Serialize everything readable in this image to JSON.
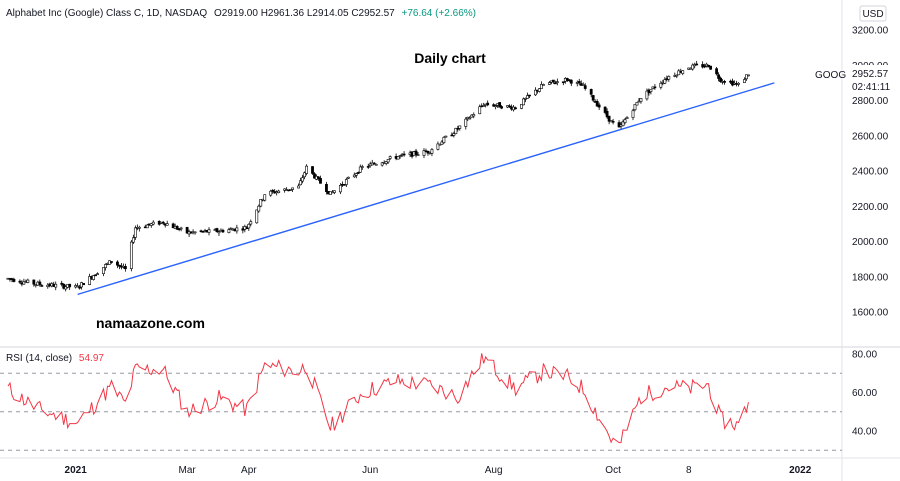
{
  "header": {
    "symbol_line": "Alphabet Inc (Google) Class C, 1D, NASDAQ",
    "ohlc": "O2919.00 H2961.36 L2914.05 C2952.57",
    "change": "+76.64 (+2.66%)"
  },
  "currency_badge": "USD",
  "annotations": {
    "title": "Daily chart",
    "watermark": "namaazone.com",
    "ticker": "GOOG",
    "last_price": "2952.57",
    "countdown": "02:41:11"
  },
  "rsi_header": {
    "label": "RSI (14, close)",
    "value": "54.97"
  },
  "colors": {
    "candle": "#000000",
    "trendline": "#2962ff",
    "rsi_line": "#f23645",
    "rsi_bands": "#9598a1",
    "grid": "#e0e3eb"
  },
  "chart_data": [
    {
      "type": "candlestick",
      "x_tick_labels": [
        "2021",
        "Mar",
        "Apr",
        "Jun",
        "Aug",
        "Oct",
        "8",
        "2022"
      ],
      "y_tick_labels": [
        "1600.00",
        "1800.00",
        "2000.00",
        "2200.00",
        "2400.00",
        "2600.00",
        "2800.00",
        "3000.00",
        "3200.00"
      ],
      "ylim": [
        1500,
        3250
      ],
      "close_series": [
        [
          "2020-12-01",
          1790
        ],
        [
          "2020-12-15",
          1760
        ],
        [
          "2021-01-05",
          1740
        ],
        [
          "2021-01-22",
          1890
        ],
        [
          "2021-01-29",
          1840
        ],
        [
          "2021-02-03",
          2080
        ],
        [
          "2021-02-17",
          2110
        ],
        [
          "2021-03-01",
          2050
        ],
        [
          "2021-03-17",
          2060
        ],
        [
          "2021-03-31",
          2080
        ],
        [
          "2021-04-09",
          2270
        ],
        [
          "2021-04-26",
          2310
        ],
        [
          "2021-04-30",
          2420
        ],
        [
          "2021-05-12",
          2270
        ],
        [
          "2021-05-28",
          2420
        ],
        [
          "2021-06-14",
          2480
        ],
        [
          "2021-06-30",
          2510
        ],
        [
          "2021-07-15",
          2640
        ],
        [
          "2021-07-28",
          2780
        ],
        [
          "2021-08-13",
          2760
        ],
        [
          "2021-08-27",
          2890
        ],
        [
          "2021-09-08",
          2920
        ],
        [
          "2021-09-16",
          2880
        ],
        [
          "2021-09-30",
          2680
        ],
        [
          "2021-10-04",
          2640
        ],
        [
          "2021-10-15",
          2820
        ],
        [
          "2021-10-28",
          2930
        ],
        [
          "2021-11-08",
          2990
        ],
        [
          "2021-11-18",
          3000
        ],
        [
          "2021-11-24",
          2920
        ],
        [
          "2021-12-03",
          2890
        ],
        [
          "2021-12-08",
          2952.57
        ]
      ],
      "trendline": {
        "from": [
          "2021-01-05",
          1700
        ],
        "to": [
          "2021-12-21",
          2900
        ]
      }
    },
    {
      "type": "line",
      "title": "RSI (14, close)",
      "y_tick_labels": [
        "40.00",
        "60.00",
        "80.00"
      ],
      "ylim": [
        24,
        84
      ],
      "bands": [
        30,
        50,
        70
      ],
      "rsi_series": [
        [
          "2020-12-01",
          62
        ],
        [
          "2020-12-15",
          52
        ],
        [
          "2021-01-05",
          44
        ],
        [
          "2021-01-22",
          63
        ],
        [
          "2021-01-29",
          54
        ],
        [
          "2021-02-03",
          72
        ],
        [
          "2021-02-17",
          72
        ],
        [
          "2021-03-01",
          50
        ],
        [
          "2021-03-17",
          57
        ],
        [
          "2021-03-31",
          51
        ],
        [
          "2021-04-09",
          74
        ],
        [
          "2021-04-26",
          71
        ],
        [
          "2021-04-30",
          74
        ],
        [
          "2021-05-12",
          42
        ],
        [
          "2021-05-28",
          60
        ],
        [
          "2021-06-14",
          66
        ],
        [
          "2021-06-30",
          64
        ],
        [
          "2021-07-15",
          58
        ],
        [
          "2021-07-28",
          78
        ],
        [
          "2021-08-13",
          62
        ],
        [
          "2021-08-27",
          71
        ],
        [
          "2021-09-08",
          68
        ],
        [
          "2021-09-16",
          62
        ],
        [
          "2021-09-30",
          36
        ],
        [
          "2021-10-04",
          32
        ],
        [
          "2021-10-15",
          58
        ],
        [
          "2021-10-28",
          63
        ],
        [
          "2021-11-08",
          62
        ],
        [
          "2021-11-18",
          64
        ],
        [
          "2021-11-24",
          46
        ],
        [
          "2021-12-03",
          43
        ],
        [
          "2021-12-08",
          54.97
        ]
      ]
    }
  ]
}
